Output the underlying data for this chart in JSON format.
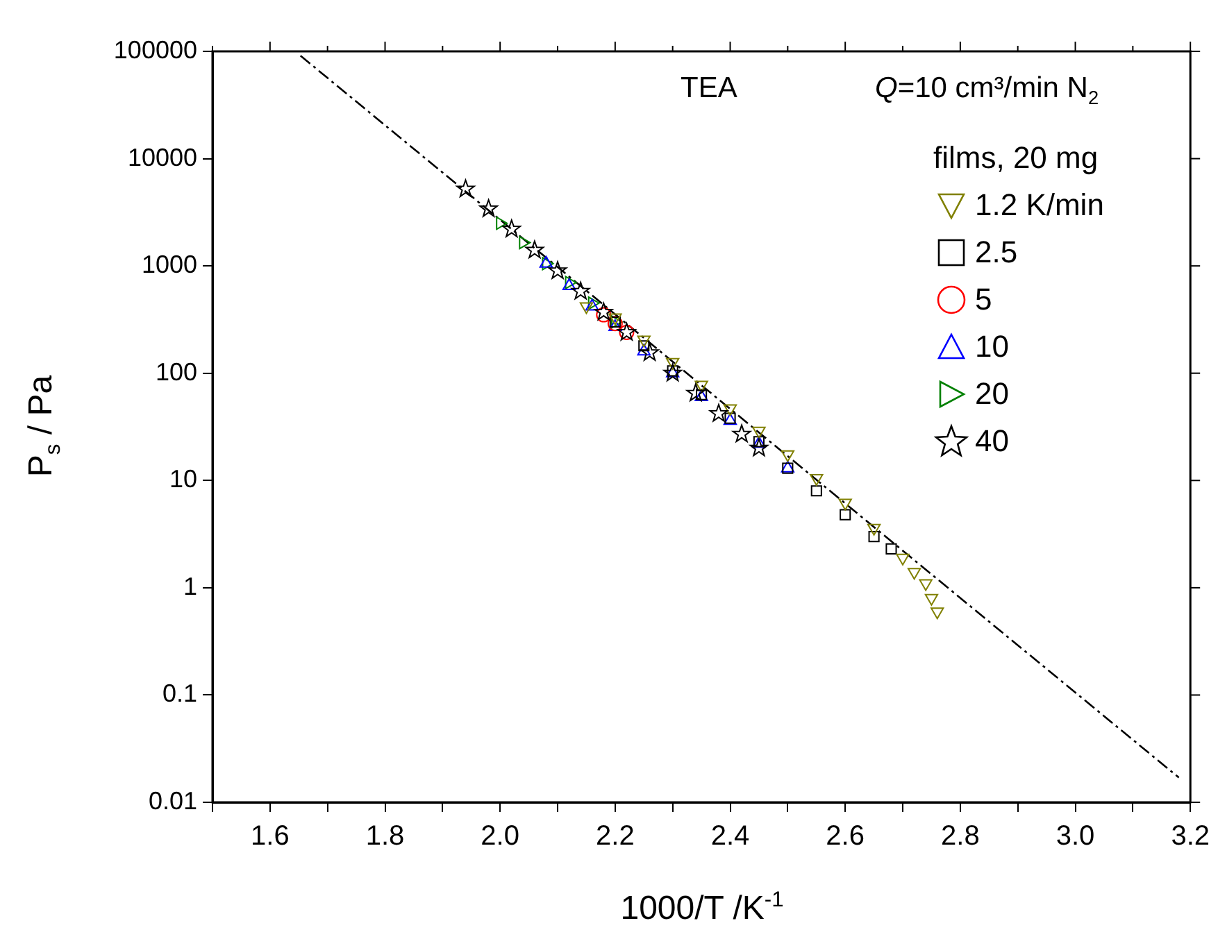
{
  "chart_data": {
    "type": "scatter",
    "xlabel": "1000/T /K$^{-1}$",
    "ylabel": "P$_{s}$ / Pa",
    "legend_title": "films, 20 mg",
    "legend": "top right",
    "log": "y",
    "grid": false,
    "annotations": [
      "TEA",
      "Q=10 cm³/min N$_{2}$"
    ],
    "xlim": [
      1.5,
      3.2
    ],
    "xticks": [
      {
        "value": 1.5,
        "label": null
      },
      1.6,
      {
        "value": 1.7,
        "label": null
      },
      1.8,
      {
        "value": 1.9,
        "label": null
      },
      {
        "value": 2,
        "label": "2.0"
      },
      {
        "value": 2.1,
        "label": null
      },
      2.2,
      {
        "value": 2.3,
        "label": null
      },
      2.4,
      {
        "value": 2.5,
        "label": null
      },
      2.6,
      {
        "value": 2.7,
        "label": null
      },
      2.8,
      {
        "value": 2.9,
        "label": null
      },
      {
        "value": 3,
        "label": "3.0"
      },
      {
        "value": 3.1,
        "label": null
      },
      3.2
    ],
    "ylim": [
      0.01,
      100000
    ],
    "yticks": [
      0.01,
      0.1,
      1,
      10,
      100,
      1000,
      10000,
      100000
    ],
    "series": [
      {
        "name": "1.2 K/min",
        "color": "#808000",
        "marker": "triangle-down",
        "x": [
          2.15,
          2.2,
          2.25,
          2.3,
          2.35,
          2.4,
          2.45,
          2.5,
          2.55,
          2.6,
          2.65,
          2.7,
          2.72,
          2.74,
          2.75,
          2.76
        ],
        "values": [
          420,
          330,
          205,
          127,
          78,
          47,
          29,
          17.5,
          10.5,
          6.2,
          3.6,
          1.9,
          1.4,
          1.1,
          0.8,
          0.6
        ]
      },
      {
        "name": "2.5",
        "color": "#000000",
        "marker": "square",
        "x": [
          2.2,
          2.25,
          2.3,
          2.35,
          2.4,
          2.45,
          2.5,
          2.55,
          2.6,
          2.65,
          2.68
        ],
        "values": [
          300,
          180,
          105,
          63,
          38,
          23,
          13,
          8,
          4.8,
          3,
          2.3
        ]
      },
      {
        "name": "5",
        "color": "#ff0000",
        "marker": "circle",
        "x": [
          2.18,
          2.2,
          2.22
        ],
        "values": [
          350,
          290,
          240
        ]
      },
      {
        "name": "10",
        "color": "#0000ff",
        "marker": "triangle",
        "x": [
          2.08,
          2.12,
          2.16,
          2.2,
          2.25,
          2.3,
          2.35,
          2.4,
          2.45,
          2.5
        ],
        "values": [
          1050,
          650,
          420,
          270,
          160,
          100,
          60,
          36,
          22,
          13
        ]
      },
      {
        "name": "20",
        "color": "#008000",
        "marker": "triangle-right",
        "x": [
          2.0,
          2.04,
          2.08,
          2.12,
          2.16,
          2.2
        ],
        "values": [
          2500,
          1650,
          1050,
          700,
          450,
          300
        ]
      },
      {
        "name": "40",
        "color": "#000000",
        "marker": "star",
        "x": [
          1.94,
          1.98,
          2.02,
          2.06,
          2.1,
          2.14,
          2.18,
          2.22,
          2.26,
          2.3,
          2.34,
          2.38,
          2.42,
          2.45
        ],
        "values": [
          5200,
          3400,
          2200,
          1400,
          900,
          580,
          370,
          240,
          155,
          100,
          65,
          42,
          27,
          20
        ]
      },
      {
        "type": "line",
        "color": "#000000",
        "line_style": "dashdot",
        "marker": "none",
        "x": [
          1.653,
          3.18
        ],
        "values": [
          91000,
          0.017
        ]
      }
    ]
  }
}
